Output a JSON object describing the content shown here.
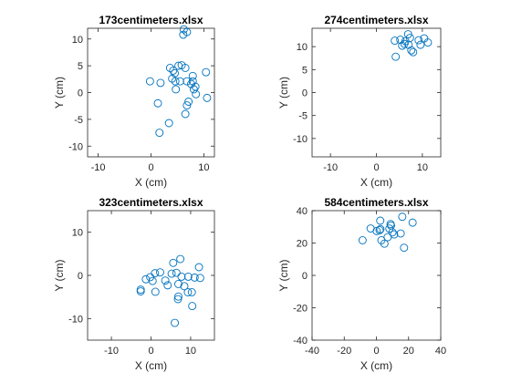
{
  "colors": {
    "marker": "#0072BD",
    "axis": "#262626",
    "background": "#ffffff"
  },
  "chart_data": [
    {
      "type": "scatter",
      "title": "173centimeters.xlsx",
      "xlabel": "X (cm)",
      "ylabel": "Y (cm)",
      "xlim": [
        -12,
        12
      ],
      "ylim": [
        -12,
        12
      ],
      "xticks": [
        -10,
        0,
        10
      ],
      "yticks": [
        -10,
        -5,
        0,
        5,
        10
      ],
      "grid": false,
      "points": [
        [
          6.2,
          11.8
        ],
        [
          6.8,
          11.3
        ],
        [
          6.1,
          10.8
        ],
        [
          3.6,
          4.6
        ],
        [
          4.2,
          4.1
        ],
        [
          5.2,
          5.0
        ],
        [
          5.8,
          5.1
        ],
        [
          6.5,
          4.6
        ],
        [
          4.5,
          3.6
        ],
        [
          4.0,
          2.6
        ],
        [
          4.6,
          2.1
        ],
        [
          5.5,
          2.1
        ],
        [
          6.8,
          2.1
        ],
        [
          7.6,
          1.6
        ],
        [
          7.9,
          2.1
        ],
        [
          7.9,
          3.1
        ],
        [
          8.1,
          0.6
        ],
        [
          8.5,
          -0.3
        ],
        [
          8.4,
          1.1
        ],
        [
          4.7,
          0.6
        ],
        [
          -0.2,
          2.1
        ],
        [
          1.8,
          1.8
        ],
        [
          1.3,
          -2.0
        ],
        [
          3.4,
          -5.7
        ],
        [
          1.6,
          -7.5
        ],
        [
          7.1,
          -1.7
        ],
        [
          6.8,
          -2.4
        ],
        [
          6.5,
          -4.0
        ],
        [
          10.4,
          3.8
        ],
        [
          10.6,
          -1.0
        ]
      ]
    },
    {
      "type": "scatter",
      "title": "274centimeters.xlsx",
      "xlabel": "X (cm)",
      "ylabel": "Y (cm)",
      "xlim": [
        -14,
        14
      ],
      "ylim": [
        -14,
        14
      ],
      "xticks": [
        -10,
        0,
        10
      ],
      "yticks": [
        -10,
        -5,
        0,
        5,
        10
      ],
      "grid": false,
      "points": [
        [
          4.0,
          11.3
        ],
        [
          5.2,
          11.5
        ],
        [
          6.3,
          11.2
        ],
        [
          6.9,
          12.7
        ],
        [
          7.3,
          11.9
        ],
        [
          9.2,
          11.4
        ],
        [
          10.4,
          11.8
        ],
        [
          11.2,
          10.9
        ],
        [
          5.6,
          10.2
        ],
        [
          6.1,
          10.6
        ],
        [
          7.0,
          10.4
        ],
        [
          7.6,
          9.2
        ],
        [
          4.2,
          7.8
        ],
        [
          8.0,
          8.8
        ],
        [
          9.6,
          10.4
        ]
      ]
    },
    {
      "type": "scatter",
      "title": "323centimeters.xlsx",
      "xlabel": "X (cm)",
      "ylabel": "Y (cm)",
      "xlim": [
        -16,
        16
      ],
      "ylim": [
        -15,
        15
      ],
      "xticks": [
        -10,
        0,
        10
      ],
      "yticks": [
        -10,
        0,
        10
      ],
      "grid": false,
      "points": [
        [
          -2.6,
          -3.3
        ],
        [
          -2.6,
          -3.7
        ],
        [
          -1.3,
          -0.9
        ],
        [
          -0.2,
          -0.4
        ],
        [
          0.4,
          -1.3
        ],
        [
          1.0,
          0.5
        ],
        [
          2.3,
          0.7
        ],
        [
          1.1,
          -3.8
        ],
        [
          3.6,
          -1.2
        ],
        [
          4.2,
          -2.3
        ],
        [
          5.2,
          0.4
        ],
        [
          5.6,
          2.9
        ],
        [
          6.4,
          0.6
        ],
        [
          6.9,
          -2.0
        ],
        [
          7.4,
          3.8
        ],
        [
          7.7,
          -0.3
        ],
        [
          6.9,
          -4.9
        ],
        [
          6.8,
          -5.5
        ],
        [
          8.4,
          -2.5
        ],
        [
          9.4,
          -0.3
        ],
        [
          9.3,
          -3.9
        ],
        [
          10.3,
          -3.9
        ],
        [
          11.0,
          -0.5
        ],
        [
          12.1,
          1.9
        ],
        [
          12.4,
          -0.6
        ],
        [
          10.4,
          -7.1
        ],
        [
          6.0,
          -11.0
        ]
      ]
    },
    {
      "type": "scatter",
      "title": "584centimeters.xlsx",
      "xlabel": "X (cm)",
      "ylabel": "Y (cm)",
      "xlim": [
        -40,
        40
      ],
      "ylim": [
        -40,
        40
      ],
      "xticks": [
        -40,
        -20,
        0,
        20,
        40
      ],
      "yticks": [
        -40,
        -20,
        0,
        20,
        40
      ],
      "grid": false,
      "points": [
        [
          -8.6,
          21.7
        ],
        [
          -3.6,
          29.0
        ],
        [
          0.2,
          27.4
        ],
        [
          2.5,
          28.6
        ],
        [
          2.4,
          33.8
        ],
        [
          3.1,
          21.7
        ],
        [
          5.0,
          19.6
        ],
        [
          7.0,
          23.6
        ],
        [
          8.1,
          28.9
        ],
        [
          9.1,
          30.8
        ],
        [
          8.8,
          31.7
        ],
        [
          10.0,
          26.6
        ],
        [
          11.0,
          25.3
        ],
        [
          15.1,
          25.9
        ],
        [
          16.1,
          36.2
        ],
        [
          17.2,
          17.1
        ],
        [
          22.5,
          32.6
        ],
        [
          2.0,
          27.9
        ]
      ]
    }
  ]
}
